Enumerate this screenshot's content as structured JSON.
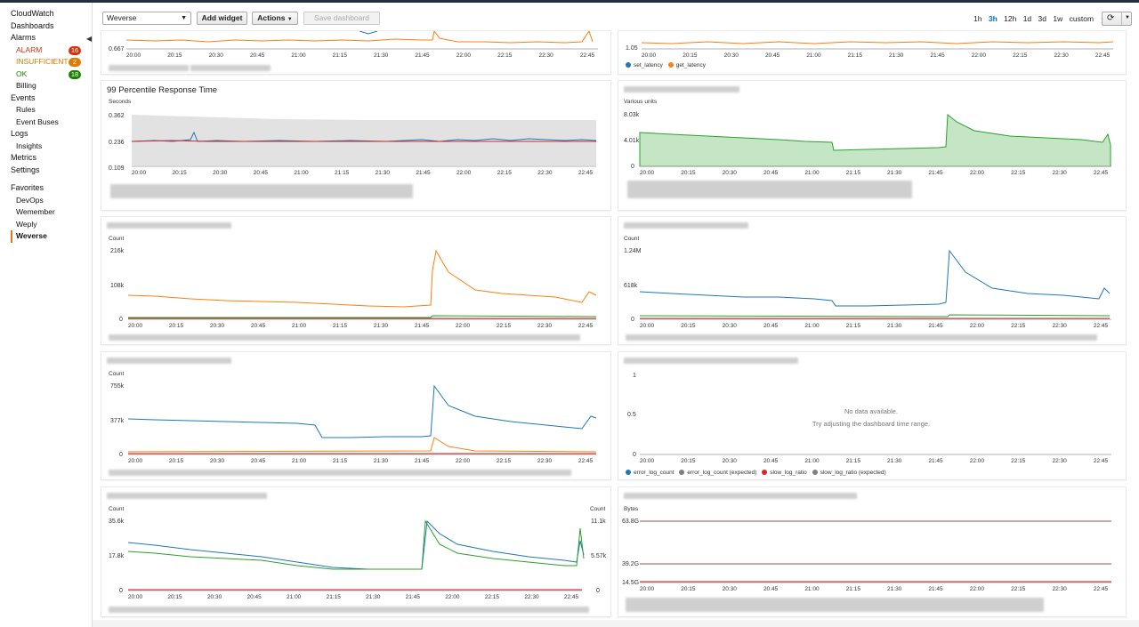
{
  "sidebar": {
    "items": [
      {
        "label": "CloudWatch",
        "kind": "top"
      },
      {
        "label": "Dashboards",
        "kind": "top"
      },
      {
        "label": "Alarms",
        "kind": "top"
      }
    ],
    "alarm_states": [
      {
        "label": "ALARM",
        "count": "16",
        "color": "#d13212"
      },
      {
        "label": "INSUFFICIENT",
        "count": "2",
        "color": "#e07b00"
      },
      {
        "label": "OK",
        "count": "18",
        "color": "#1d8102"
      }
    ],
    "billing": "Billing",
    "events": "Events",
    "rules": "Rules",
    "event_buses": "Event Buses",
    "logs": "Logs",
    "insights": "Insights",
    "metrics": "Metrics",
    "settings": "Settings",
    "favorites_heading": "Favorites",
    "favorites": [
      "DevOps",
      "Wemember",
      "Weply",
      "Weverse"
    ]
  },
  "toolbar": {
    "dashboard_select": "Weverse",
    "add_widget": "Add widget",
    "actions": "Actions",
    "save_dashboard": "Save dashboard",
    "time_ranges": [
      "1h",
      "3h",
      "12h",
      "1d",
      "3d",
      "1w"
    ],
    "active_range": "3h",
    "custom": "custom"
  },
  "time_ticks": [
    "20:00",
    "20:15",
    "20:30",
    "20:45",
    "21:00",
    "21:15",
    "21:30",
    "21:45",
    "22:00",
    "22:15",
    "22:30",
    "22:45"
  ],
  "widgets": {
    "top_left": {
      "y_tick": "0.667"
    },
    "top_right": {
      "y_tick": "1.05",
      "legend": [
        "set_latency",
        "get_latency"
      ],
      "legend_colors": [
        "#1f77b4",
        "#ff7f0e"
      ]
    },
    "p99": {
      "title": "99 Percentile Response Time",
      "unit": "Seconds",
      "y_ticks": [
        "0.362",
        "0.236",
        "0.109"
      ]
    },
    "various": {
      "unit": "Various units",
      "y_ticks": [
        "8.03k",
        "4.01k",
        "0"
      ]
    },
    "count_a": {
      "unit": "Count",
      "y_ticks": [
        "216k",
        "108k",
        "0"
      ]
    },
    "count_b": {
      "unit": "Count",
      "y_ticks": [
        "1.24M",
        "618k",
        "0"
      ]
    },
    "count_c": {
      "unit": "Count",
      "y_ticks": [
        "755k",
        "377k",
        "0"
      ]
    },
    "nodata": {
      "y_ticks": [
        "1",
        "0.5",
        "0"
      ],
      "message": "No data available.",
      "hint": "Try adjusting the dashboard time range.",
      "legend": [
        "error_log_count",
        "error_log_count (expected)",
        "slow_log_ratio",
        "slow_log_ratio (expected)"
      ],
      "legend_colors": [
        "#1f77b4",
        "#7f7f7f",
        "#d62728",
        "#7f7f7f"
      ]
    },
    "dual": {
      "unit_left": "Count",
      "unit_right": "Count",
      "y_ticks_left": [
        "35.6k",
        "17.8k",
        "0"
      ],
      "y_ticks_right": [
        "11.1k",
        "5.57k",
        "0"
      ]
    },
    "bytes": {
      "unit": "Bytes",
      "y_ticks": [
        "63.8G",
        "39.2G",
        "14.5G"
      ]
    }
  }
}
